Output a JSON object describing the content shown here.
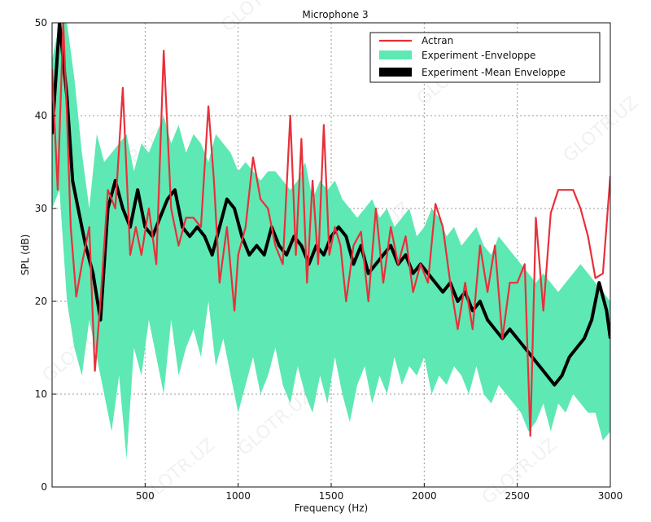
{
  "chart_data": {
    "type": "line",
    "title": "Microphone 3",
    "xlabel": "Frequency (Hz)",
    "ylabel": "SPL (dB)",
    "xlim": [
      0,
      3000
    ],
    "ylim": [
      0,
      50
    ],
    "xticks": [
      500,
      1000,
      1500,
      2000,
      2500,
      3000
    ],
    "yticks": [
      0,
      10,
      20,
      30,
      40,
      50
    ],
    "grid": true,
    "legend_position": "top-right",
    "watermark": "GLOTR.UZ",
    "series": [
      {
        "name": "Actran",
        "kind": "line",
        "color": "#e8303a",
        "x": [
          0,
          30,
          60,
          80,
          100,
          130,
          160,
          200,
          230,
          260,
          300,
          340,
          380,
          420,
          450,
          480,
          520,
          560,
          600,
          640,
          680,
          720,
          760,
          800,
          840,
          870,
          900,
          940,
          980,
          1000,
          1040,
          1080,
          1120,
          1160,
          1200,
          1240,
          1280,
          1310,
          1340,
          1370,
          1400,
          1430,
          1460,
          1490,
          1520,
          1550,
          1580,
          1620,
          1660,
          1700,
          1740,
          1780,
          1820,
          1860,
          1900,
          1940,
          1980,
          2020,
          2060,
          2100,
          2140,
          2180,
          2220,
          2260,
          2300,
          2340,
          2380,
          2420,
          2460,
          2500,
          2540,
          2570,
          2600,
          2640,
          2680,
          2720,
          2760,
          2800,
          2840,
          2880,
          2920,
          2960,
          3000
        ],
        "y": [
          45,
          32,
          50,
          40,
          28,
          20.5,
          24,
          28,
          12.5,
          20,
          32,
          30,
          43,
          25,
          28,
          25,
          30,
          24,
          47,
          30,
          26,
          29,
          29,
          28,
          41,
          33,
          22,
          28,
          19,
          25,
          28,
          35.5,
          31,
          30,
          26,
          24,
          40,
          25,
          37.5,
          22,
          33,
          24,
          39,
          25,
          28,
          26,
          20,
          26,
          27.5,
          20,
          30,
          22,
          28,
          24,
          27,
          21,
          24,
          22,
          30.5,
          28,
          22,
          17,
          22,
          17,
          26,
          21,
          26,
          16,
          22,
          22,
          24,
          5.5,
          29,
          19,
          29.5,
          32,
          32,
          32,
          30,
          27,
          22.5,
          23,
          33.5
        ]
      },
      {
        "name": "Experiment -Enveloppe",
        "kind": "band",
        "color": "#5ee8b4",
        "x": [
          0,
          40,
          80,
          120,
          160,
          200,
          240,
          280,
          320,
          360,
          400,
          440,
          480,
          520,
          560,
          600,
          640,
          680,
          720,
          760,
          800,
          840,
          880,
          920,
          960,
          1000,
          1040,
          1080,
          1120,
          1160,
          1200,
          1240,
          1280,
          1320,
          1360,
          1400,
          1440,
          1480,
          1520,
          1560,
          1600,
          1640,
          1680,
          1720,
          1760,
          1800,
          1840,
          1880,
          1920,
          1960,
          2000,
          2040,
          2080,
          2120,
          2160,
          2200,
          2240,
          2280,
          2320,
          2360,
          2400,
          2440,
          2480,
          2520,
          2560,
          2600,
          2640,
          2680,
          2720,
          2760,
          2800,
          2840,
          2880,
          2920,
          2960,
          3000
        ],
        "low": [
          30,
          32,
          20,
          15,
          12,
          18,
          14,
          10,
          6,
          12,
          3,
          15,
          12,
          18,
          14,
          10,
          18,
          12,
          15,
          17,
          14,
          20,
          13,
          16,
          12,
          8,
          11,
          14,
          10,
          12,
          15,
          11,
          9,
          13,
          10,
          8,
          12,
          9,
          14,
          10,
          7,
          11,
          13,
          9,
          12,
          10,
          14,
          11,
          13,
          12,
          14,
          10,
          12,
          11,
          13,
          12,
          10,
          13,
          10,
          9,
          11,
          10,
          9,
          8,
          6,
          7,
          9,
          6,
          9,
          8,
          10,
          9,
          8,
          8,
          5,
          6
        ],
        "high": [
          46,
          50,
          50,
          44,
          36,
          30,
          38,
          35,
          36,
          37,
          38,
          34,
          37,
          36,
          38,
          40,
          37,
          39,
          36,
          38,
          37,
          35,
          38,
          37,
          36,
          34,
          35,
          34,
          33,
          34,
          34,
          33,
          32,
          33,
          35,
          31,
          33,
          32,
          33,
          31,
          30,
          29,
          30,
          31,
          29,
          30,
          28,
          29,
          30,
          27,
          28,
          30,
          29,
          27,
          28,
          26,
          27,
          28,
          26,
          25,
          27,
          26,
          25,
          24,
          23,
          22,
          23,
          22,
          21,
          22,
          23,
          24,
          23,
          22,
          21,
          20
        ]
      },
      {
        "name": "Experiment -Mean Enveloppe",
        "kind": "thick-line",
        "color": "#000000",
        "x": [
          0,
          40,
          80,
          110,
          140,
          180,
          220,
          260,
          300,
          340,
          380,
          420,
          460,
          500,
          540,
          580,
          620,
          660,
          700,
          740,
          780,
          820,
          860,
          900,
          940,
          980,
          1020,
          1060,
          1100,
          1140,
          1180,
          1220,
          1260,
          1300,
          1340,
          1380,
          1420,
          1460,
          1500,
          1540,
          1580,
          1620,
          1660,
          1700,
          1740,
          1780,
          1820,
          1860,
          1900,
          1940,
          1980,
          2020,
          2060,
          2100,
          2140,
          2180,
          2220,
          2260,
          2300,
          2340,
          2380,
          2420,
          2460,
          2500,
          2540,
          2580,
          2620,
          2660,
          2700,
          2740,
          2780,
          2820,
          2860,
          2900,
          2940,
          2980,
          3000
        ],
        "y": [
          38,
          50,
          42,
          33,
          30,
          26,
          23,
          18,
          30,
          33,
          30,
          28,
          32,
          28,
          27,
          29,
          31,
          32,
          28,
          27,
          28,
          27,
          25,
          28,
          31,
          30,
          27,
          25,
          26,
          25,
          28,
          26,
          25,
          27,
          26,
          24,
          26,
          25,
          27,
          28,
          27,
          24,
          26,
          23,
          24,
          25,
          26,
          24,
          25,
          23,
          24,
          23,
          22,
          21,
          22,
          20,
          21,
          19,
          20,
          18,
          17,
          16,
          17,
          16,
          15,
          14,
          13,
          12,
          11,
          12,
          14,
          15,
          16,
          18,
          22,
          19,
          16
        ]
      }
    ]
  }
}
